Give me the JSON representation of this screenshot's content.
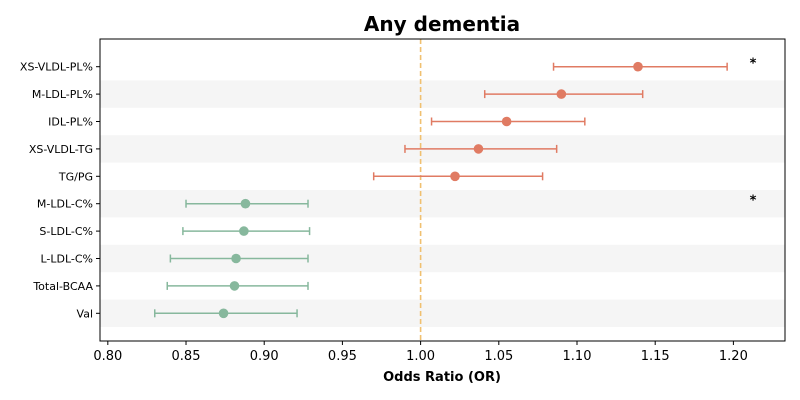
{
  "chart_data": {
    "type": "forest",
    "title": "Any dementia",
    "xlabel": "Odds Ratio (OR)",
    "ylabel": "",
    "xlim": [
      0.795,
      1.233
    ],
    "xticks": [
      "0.80",
      "0.85",
      "0.90",
      "0.95",
      "1.00",
      "1.05",
      "1.10",
      "1.15",
      "1.20"
    ],
    "reference_line": 1.0,
    "colors": {
      "positive": "#e07b63",
      "negative": "#87b89d",
      "reference": "#f0c070",
      "band": "#f5f5f5"
    },
    "rows": [
      {
        "label": "XS-VLDL-PL%",
        "or": 1.139,
        "ci_low": 1.085,
        "ci_high": 1.196,
        "sig": "*"
      },
      {
        "label": "M-LDL-PL%",
        "or": 1.09,
        "ci_low": 1.041,
        "ci_high": 1.142,
        "sig": ""
      },
      {
        "label": "IDL-PL%",
        "or": 1.055,
        "ci_low": 1.007,
        "ci_high": 1.105,
        "sig": ""
      },
      {
        "label": "XS-VLDL-TG",
        "or": 1.037,
        "ci_low": 0.99,
        "ci_high": 1.087,
        "sig": ""
      },
      {
        "label": "TG/PG",
        "or": 1.022,
        "ci_low": 0.97,
        "ci_high": 1.078,
        "sig": ""
      },
      {
        "label": "M-LDL-C%",
        "or": 0.888,
        "ci_low": 0.85,
        "ci_high": 0.928,
        "sig": "*"
      },
      {
        "label": "S-LDL-C%",
        "or": 0.887,
        "ci_low": 0.848,
        "ci_high": 0.929,
        "sig": ""
      },
      {
        "label": "L-LDL-C%",
        "or": 0.882,
        "ci_low": 0.84,
        "ci_high": 0.928,
        "sig": ""
      },
      {
        "label": "Total-BCAA",
        "or": 0.881,
        "ci_low": 0.838,
        "ci_high": 0.928,
        "sig": ""
      },
      {
        "label": "Val",
        "or": 0.874,
        "ci_low": 0.83,
        "ci_high": 0.921,
        "sig": ""
      }
    ]
  }
}
